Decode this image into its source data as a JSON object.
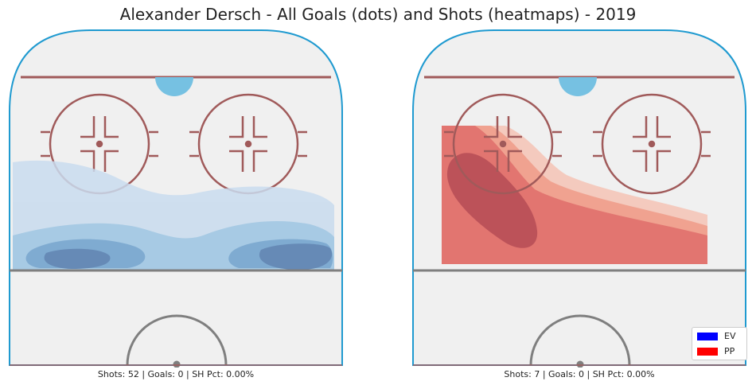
{
  "title": "Alexander Dersch - All Goals (dots) and Shots (heatmaps) - 2019",
  "panels": [
    {
      "caption": "Shots: 52 | Goals: 0 | SH Pct: 0.00%"
    },
    {
      "caption": "Shots: 7 | Goals: 0 | SH Pct: 0.00%"
    }
  ],
  "legend": [
    {
      "label": "EV",
      "color": "#0000ff"
    },
    {
      "label": "PP",
      "color": "#ff0000"
    }
  ],
  "colors": {
    "rink_fill": "#f0f0f0",
    "boards": "#1f9ad0",
    "goal_line": "#a05a5a",
    "crease": "#76c1e2",
    "blue_line": "#7f7f7f",
    "ev_levels": [
      "#c9dcee",
      "#9bc4e2",
      "#6c9fcc",
      "#4e79ad"
    ],
    "pp_levels": [
      "#f4c3b5",
      "#ee9b88",
      "#df6d6b",
      "#b84f57"
    ]
  },
  "chart_data": [
    {
      "type": "heatmap",
      "title": "",
      "situation": "EV",
      "shots": 52,
      "goals": 0,
      "sh_pct": "0.00%",
      "note_levels": 4
    },
    {
      "type": "heatmap",
      "title": "",
      "situation": "PP",
      "shots": 7,
      "goals": 0,
      "sh_pct": "0.00%",
      "note_levels": 4
    }
  ]
}
